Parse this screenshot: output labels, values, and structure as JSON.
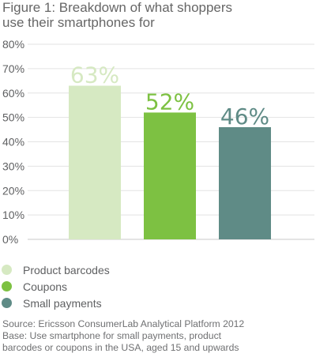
{
  "title": {
    "line1": "Figure 1: Breakdown of what shoppers",
    "line2": "use their smartphones for"
  },
  "chart_data": {
    "type": "bar",
    "categories": [
      "Product barcodes",
      "Coupons",
      "Small payments"
    ],
    "values": [
      63,
      52,
      46
    ],
    "value_labels": [
      "63%",
      "52%",
      "46%"
    ],
    "colors": [
      "#d6e9c2",
      "#7dc142",
      "#5f8b86"
    ],
    "label_colors": [
      "#d6e9c2",
      "#7dc142",
      "#5f8b86"
    ],
    "ylim": [
      0,
      80
    ],
    "yticks": [
      "0%",
      "10%",
      "20%",
      "30%",
      "40%",
      "50%",
      "60%",
      "70%",
      "80%"
    ],
    "grid": true,
    "legend_position": "bottom-left",
    "xlabel": "",
    "ylabel": ""
  },
  "legend": [
    {
      "label": "Product barcodes",
      "color": "#d6e9c2"
    },
    {
      "label": "Coupons",
      "color": "#7dc142"
    },
    {
      "label": "Small payments",
      "color": "#5f8b86"
    }
  ],
  "notes": {
    "source": "Source: Ericsson ConsumerLab Analytical Platform 2012",
    "base_line1": "Base: Use smartphone for small payments, product",
    "base_line2": "barcodes or coupons in the USA, aged 15 and upwards"
  }
}
